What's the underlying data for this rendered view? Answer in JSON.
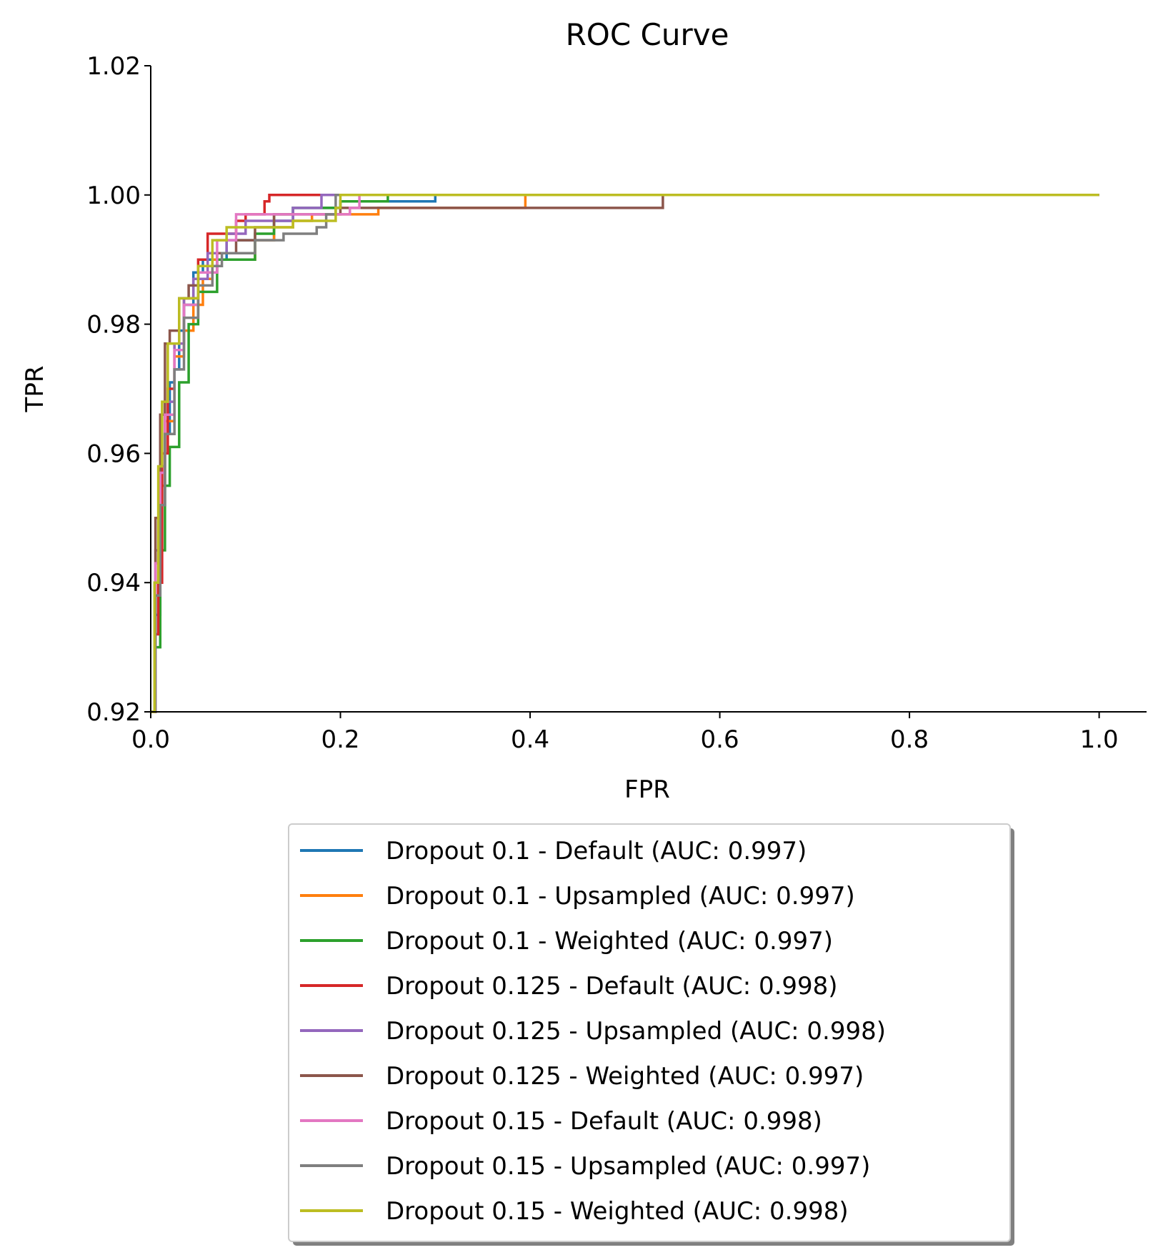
{
  "chart_data": {
    "type": "line",
    "title": "ROC Curve",
    "xlabel": "FPR",
    "ylabel": "TPR",
    "xlim": [
      0.0,
      1.05
    ],
    "ylim": [
      0.92,
      1.02
    ],
    "x_ticks": [
      "0.0",
      "0.2",
      "0.4",
      "0.6",
      "0.8",
      "1.0"
    ],
    "x_tick_values": [
      0.0,
      0.2,
      0.4,
      0.6,
      0.8,
      1.0
    ],
    "y_ticks": [
      "0.92",
      "0.94",
      "0.96",
      "0.98",
      "1.00",
      "1.02"
    ],
    "y_tick_values": [
      0.92,
      0.94,
      0.96,
      0.98,
      1.0,
      1.02
    ],
    "grid": false,
    "legend_position": "below",
    "series": [
      {
        "name": "Dropout 0.1 - Default (AUC: 0.997)",
        "color": "#1f77b4",
        "x": [
          0,
          0.005,
          0.01,
          0.015,
          0.02,
          0.025,
          0.03,
          0.035,
          0.045,
          0.055,
          0.08,
          0.11,
          0.13,
          0.15,
          0.2,
          0.3,
          1.0
        ],
        "y": [
          0.92,
          0.935,
          0.952,
          0.963,
          0.971,
          0.973,
          0.979,
          0.983,
          0.988,
          0.99,
          0.993,
          0.993,
          0.996,
          0.998,
          0.999,
          1.0,
          1.0
        ]
      },
      {
        "name": "Dropout 0.1 - Upsampled (AUC: 0.997)",
        "color": "#ff7f0e",
        "x": [
          0,
          0.005,
          0.01,
          0.015,
          0.025,
          0.035,
          0.045,
          0.055,
          0.065,
          0.11,
          0.13,
          0.15,
          0.17,
          0.24,
          0.395,
          1.0
        ],
        "y": [
          0.92,
          0.94,
          0.955,
          0.965,
          0.975,
          0.979,
          0.983,
          0.987,
          0.99,
          0.993,
          0.995,
          0.996,
          0.997,
          0.998,
          1.0,
          1.0
        ]
      },
      {
        "name": "Dropout 0.1 - Weighted (AUC: 0.997)",
        "color": "#2ca02c",
        "x": [
          0,
          0.005,
          0.01,
          0.015,
          0.02,
          0.03,
          0.04,
          0.05,
          0.07,
          0.11,
          0.13,
          0.15,
          0.2,
          0.25,
          1.0
        ],
        "y": [
          0.92,
          0.93,
          0.945,
          0.955,
          0.961,
          0.971,
          0.98,
          0.985,
          0.99,
          0.994,
          0.997,
          0.998,
          0.999,
          1.0,
          1.0
        ]
      },
      {
        "name": "Dropout 0.125 - Default (AUC: 0.998)",
        "color": "#d62728",
        "x": [
          0,
          0.005,
          0.008,
          0.012,
          0.018,
          0.025,
          0.035,
          0.05,
          0.06,
          0.09,
          0.1,
          0.12,
          0.125,
          0.2,
          1.0
        ],
        "y": [
          0.92,
          0.932,
          0.94,
          0.96,
          0.97,
          0.977,
          0.984,
          0.99,
          0.994,
          0.996,
          0.997,
          0.999,
          1.0,
          1.0,
          1.0
        ]
      },
      {
        "name": "Dropout 0.125 - Upsampled (AUC: 0.998)",
        "color": "#9467bd",
        "x": [
          0,
          0.005,
          0.01,
          0.015,
          0.025,
          0.035,
          0.045,
          0.06,
          0.08,
          0.1,
          0.15,
          0.18,
          1.0
        ],
        "y": [
          0.92,
          0.945,
          0.958,
          0.968,
          0.977,
          0.984,
          0.987,
          0.991,
          0.994,
          0.996,
          0.998,
          1.0,
          1.0
        ]
      },
      {
        "name": "Dropout 0.125 - Weighted (AUC: 0.997)",
        "color": "#8c564b",
        "x": [
          0,
          0.005,
          0.01,
          0.015,
          0.02,
          0.03,
          0.04,
          0.05,
          0.07,
          0.09,
          0.11,
          0.13,
          0.2,
          0.52,
          0.54,
          1.0
        ],
        "y": [
          0.92,
          0.95,
          0.966,
          0.977,
          0.979,
          0.984,
          0.986,
          0.988,
          0.991,
          0.993,
          0.995,
          0.997,
          0.998,
          0.998,
          1.0,
          1.0
        ]
      },
      {
        "name": "Dropout 0.15 - Default (AUC: 0.998)",
        "color": "#e377c2",
        "x": [
          0,
          0.005,
          0.01,
          0.015,
          0.025,
          0.035,
          0.05,
          0.07,
          0.09,
          0.13,
          0.21,
          0.22,
          1.0
        ],
        "y": [
          0.92,
          0.943,
          0.957,
          0.966,
          0.976,
          0.983,
          0.988,
          0.993,
          0.997,
          0.997,
          0.998,
          1.0,
          1.0
        ]
      },
      {
        "name": "Dropout 0.15 - Upsampled (AUC: 0.997)",
        "color": "#7f7f7f",
        "x": [
          0,
          0.005,
          0.01,
          0.015,
          0.025,
          0.035,
          0.05,
          0.065,
          0.075,
          0.11,
          0.14,
          0.175,
          0.185,
          0.195,
          1.0
        ],
        "y": [
          0.92,
          0.938,
          0.952,
          0.963,
          0.973,
          0.981,
          0.986,
          0.989,
          0.991,
          0.993,
          0.994,
          0.995,
          0.997,
          1.0,
          1.0
        ]
      },
      {
        "name": "Dropout 0.15 - Weighted (AUC: 0.998)",
        "color": "#bcbd22",
        "x": [
          0,
          0.004,
          0.008,
          0.012,
          0.018,
          0.03,
          0.05,
          0.065,
          0.08,
          0.15,
          0.195,
          0.2,
          1.0
        ],
        "y": [
          0.92,
          0.94,
          0.958,
          0.968,
          0.977,
          0.984,
          0.989,
          0.993,
          0.995,
          0.996,
          0.998,
          1.0,
          1.0
        ]
      }
    ]
  }
}
